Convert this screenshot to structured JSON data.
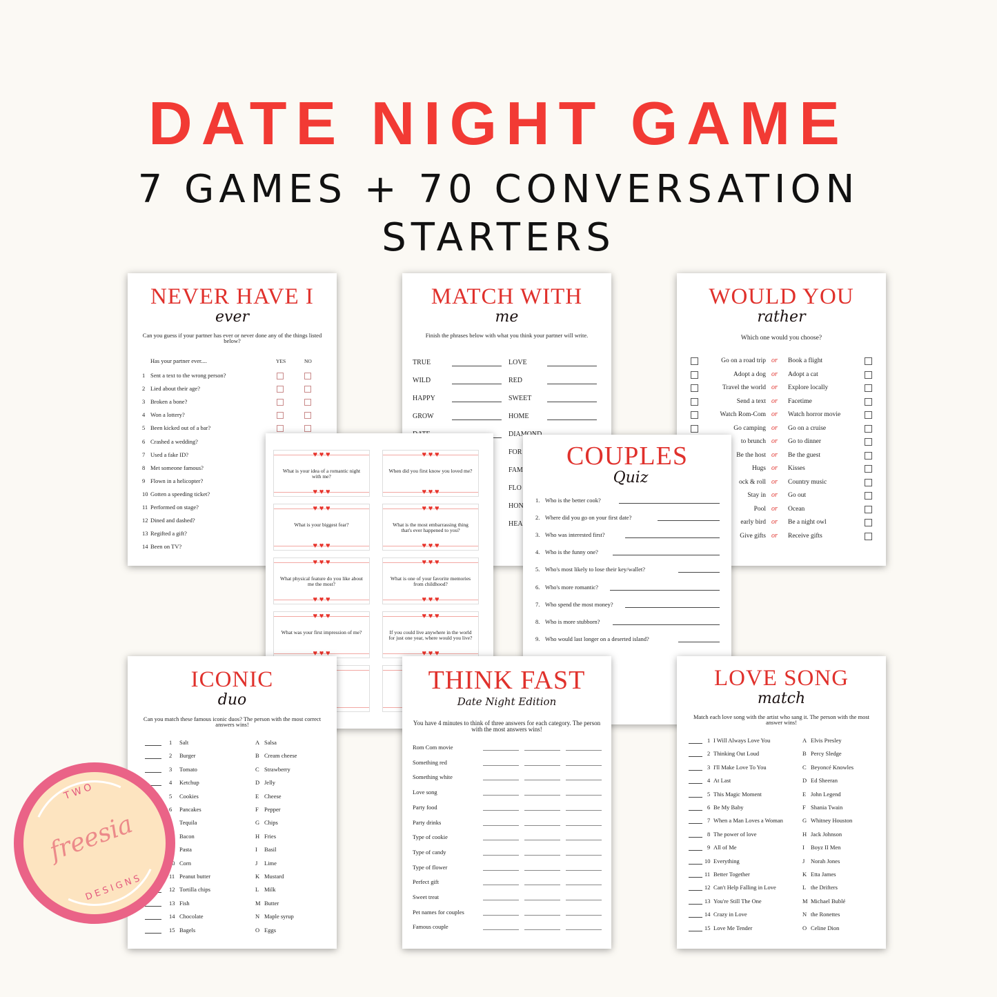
{
  "header": {
    "title": "DATE NIGHT GAME",
    "subtitle_line1": "7 GAMES + 70  CONVERSATION",
    "subtitle_line2": "STARTERS"
  },
  "colors": {
    "accent": "#e0312c",
    "background": "#fbf9f4",
    "logo_ring": "#ea6387",
    "logo_fill": "#fde4c0"
  },
  "never": {
    "title": "NEVER HAVE I",
    "script": "ever",
    "desc": "Can you guess if your partner has ever or never done any of the things listed below?",
    "lead": "Has your partner ever....",
    "yes": "YES",
    "no": "NO",
    "items": [
      "Sent a text to the wrong person?",
      "Lied about their age?",
      "Broken a bone?",
      "Won a lottery?",
      "Been kicked out of a bar?",
      "Crashed a wedding?",
      "Used a fake ID?",
      "Met someone famous?",
      "Flown in a helicopter?",
      "Gotten a speeding ticket?",
      "Performed on stage?",
      "Dined and dashed?",
      "Regifted a gift?",
      "Been on TV?"
    ]
  },
  "match": {
    "title": "MATCH WITH",
    "script": "me",
    "desc": "Finish the phrases below with what you think your partner will write.",
    "left": [
      "TRUE",
      "WILD",
      "HAPPY",
      "GROW",
      "DATE"
    ],
    "right": [
      "LOVE",
      "RED",
      "SWEET",
      "HOME",
      "DIAMOND",
      "FOR",
      "FAM",
      "FLO",
      "HON",
      "HEA"
    ]
  },
  "would": {
    "title": "WOULD YOU",
    "script": "rather",
    "desc": "Which one would you choose?",
    "or": "or",
    "pairs": [
      [
        "Go on a road trip",
        "Book a flight"
      ],
      [
        "Adopt a dog",
        "Adopt a cat"
      ],
      [
        "Travel the world",
        "Explore locally"
      ],
      [
        "Send a text",
        "Facetime"
      ],
      [
        "Watch Rom-Com",
        "Watch horror movie"
      ],
      [
        "Go camping",
        "Go on a cruise"
      ],
      [
        "to brunch",
        "Go to dinner"
      ],
      [
        "Be the host",
        "Be the guest"
      ],
      [
        "Hugs",
        "Kisses"
      ],
      [
        "ock & roll",
        "Country music"
      ],
      [
        "Stay in",
        "Go out"
      ],
      [
        "Pool",
        "Ocean"
      ],
      [
        "early bird",
        "Be a night owl"
      ],
      [
        "Give gifts",
        "Receive gifts"
      ]
    ]
  },
  "starters": {
    "questions": [
      "What is your idea of a romantic night with me?",
      "When did you first know you loved me?",
      "What is your biggest fear?",
      "What is the most embarrassing thing that's ever happened to you?",
      "What physical feature do you like about me the most?",
      "What is one of your favorite memories from childhood?",
      "What was your first impression of me?",
      "If you could live anywhere in the world for just one year, where would you live?",
      "",
      ""
    ]
  },
  "couples": {
    "title": "COUPLES",
    "script": "Quiz",
    "items": [
      "Who is the better cook?",
      "Where did you go on your first date?",
      "Who was interested first?",
      "Who is the funny one?",
      "Who's most likely to lose their key/wallet?",
      "Who's more romantic?",
      "Who spend the most money?",
      "Who is more stubborn?",
      "Who would last longer on a deserted island?"
    ]
  },
  "iconic": {
    "title": "ICONIC",
    "script": "duo",
    "desc": "Can you match these famous iconic duos? The person with the most correct answers wins!",
    "left": [
      "Salt",
      "Burger",
      "Tomato",
      "Ketchup",
      "Cookies",
      "Pancakes",
      "Tequila",
      "Bacon",
      "Pasta",
      "Corn",
      "Peanut butter",
      "Tortilla chips",
      "Fish",
      "Chocolate",
      "Bagels"
    ],
    "right": [
      "Salsa",
      "Cream cheese",
      "Strawberry",
      "Jelly",
      "Cheese",
      "Pepper",
      "Chips",
      "Fries",
      "Basil",
      "Lime",
      "Mustard",
      "Milk",
      "Butter",
      "Maple syrup",
      "Eggs"
    ]
  },
  "think": {
    "title": "THINK FAST",
    "script": "Date Night Edition",
    "desc": "You have 4 minutes to think of three answers for each category. The person with the most answers wins!",
    "items": [
      "Rom Com movie",
      "Something red",
      "Something white",
      "Love song",
      "Party food",
      "Party drinks",
      "Type of cookie",
      "Type of candy",
      "Type of flower",
      "Perfect gift",
      "Sweet treat",
      "Pet names for couples",
      "Famous couple"
    ]
  },
  "love": {
    "title": "LOVE SONG",
    "script": "match",
    "desc": "Match each love song with the artist who sang it. The person with the most answer wins!",
    "left": [
      "I Will Always Love You",
      "Thinking Out Loud",
      "I'll Make Love To You",
      "At Last",
      "This Magic Moment",
      "Be My Baby",
      "When a Man Loves a Woman",
      "The power of love",
      "All of Me",
      "Everything",
      "Better Together",
      "Can't Help Falling in Love",
      "You're Still The One",
      "Crazy in Love",
      "Love Me Tender"
    ],
    "right": [
      "Elvis Presley",
      "Percy Sledge",
      "Beyoncé Knowles",
      "Ed Sheeran",
      "John Legend",
      "Shania Twain",
      "Whitney Houston",
      "Jack Johnson",
      "Boyz II Men",
      "Norah Jones",
      "Etta James",
      "the Drifters",
      "Michael Bublé",
      "the Ronettes",
      "Celine Dion"
    ]
  },
  "letters": [
    "A",
    "B",
    "C",
    "D",
    "E",
    "F",
    "G",
    "H",
    "I",
    "J",
    "K",
    "L",
    "M",
    "N",
    "O"
  ],
  "logo": {
    "top": "TWO",
    "script": "freesia",
    "bottom": "DESIGNS"
  }
}
